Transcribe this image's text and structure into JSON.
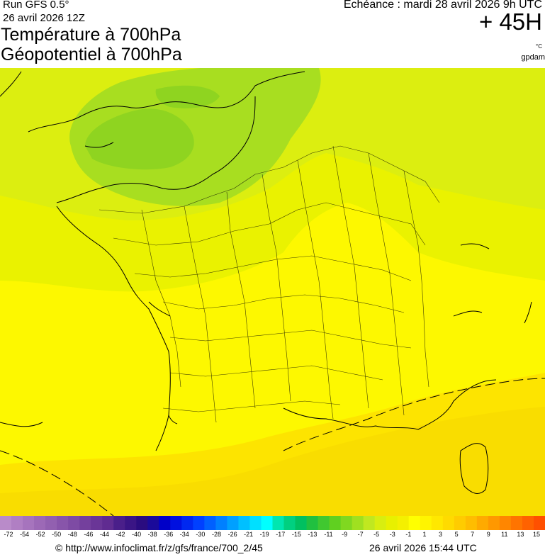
{
  "header": {
    "run": "Run GFS 0.5°",
    "run_date": "26 avril 2026 12Z",
    "title_line1": "Température à 700hPa",
    "title_line2": "Géopotentiel à 700hPa",
    "echeance": "Echéance : mardi 28 avril 2026 9h UTC",
    "hour": "+ 45H",
    "unit_temp": "°C",
    "unit_geo": "gpdam"
  },
  "scale": {
    "labels": [
      "-72",
      "-54",
      "-52",
      "-50",
      "-48",
      "-46",
      "-44",
      "-42",
      "-40",
      "-38",
      "-36",
      "-34",
      "-30",
      "-28",
      "-26",
      "-21",
      "-19",
      "-17",
      "-15",
      "-13",
      "-11",
      "-9",
      "-7",
      "-5",
      "-3",
      "-1",
      "1",
      "3",
      "5",
      "7",
      "9",
      "11",
      "13",
      "15"
    ],
    "colors": [
      "#b98bc9",
      "#b07fc3",
      "#a674bd",
      "#9c69b6",
      "#9260b0",
      "#8855aa",
      "#7e4ba4",
      "#74409d",
      "#6a3697",
      "#602c91",
      "#4a1f8a",
      "#3a1585",
      "#2a0c80",
      "#1a0a9a",
      "#0000c8",
      "#0010e0",
      "#0028f0",
      "#0040ff",
      "#0060ff",
      "#0080ff",
      "#00a0ff",
      "#00c0ff",
      "#00e0ff",
      "#00ffff",
      "#00e6b0",
      "#00d080",
      "#00c060",
      "#20c040",
      "#40c830",
      "#60d020",
      "#80d820",
      "#a0e020",
      "#c0e820",
      "#d8ee10",
      "#e8f000",
      "#f4f000",
      "#ffff00",
      "#fff500",
      "#ffe800",
      "#ffdb00",
      "#ffcc00",
      "#ffbd00",
      "#ffaa00",
      "#ff9800",
      "#ff8600",
      "#ff7400",
      "#ff6200",
      "#ff5000"
    ]
  },
  "footer": {
    "credit": "© http://www.infoclimat.fr/z/gfs/france/700_2/45",
    "timestamp": "26 avril 2026 15:44 UTC"
  }
}
